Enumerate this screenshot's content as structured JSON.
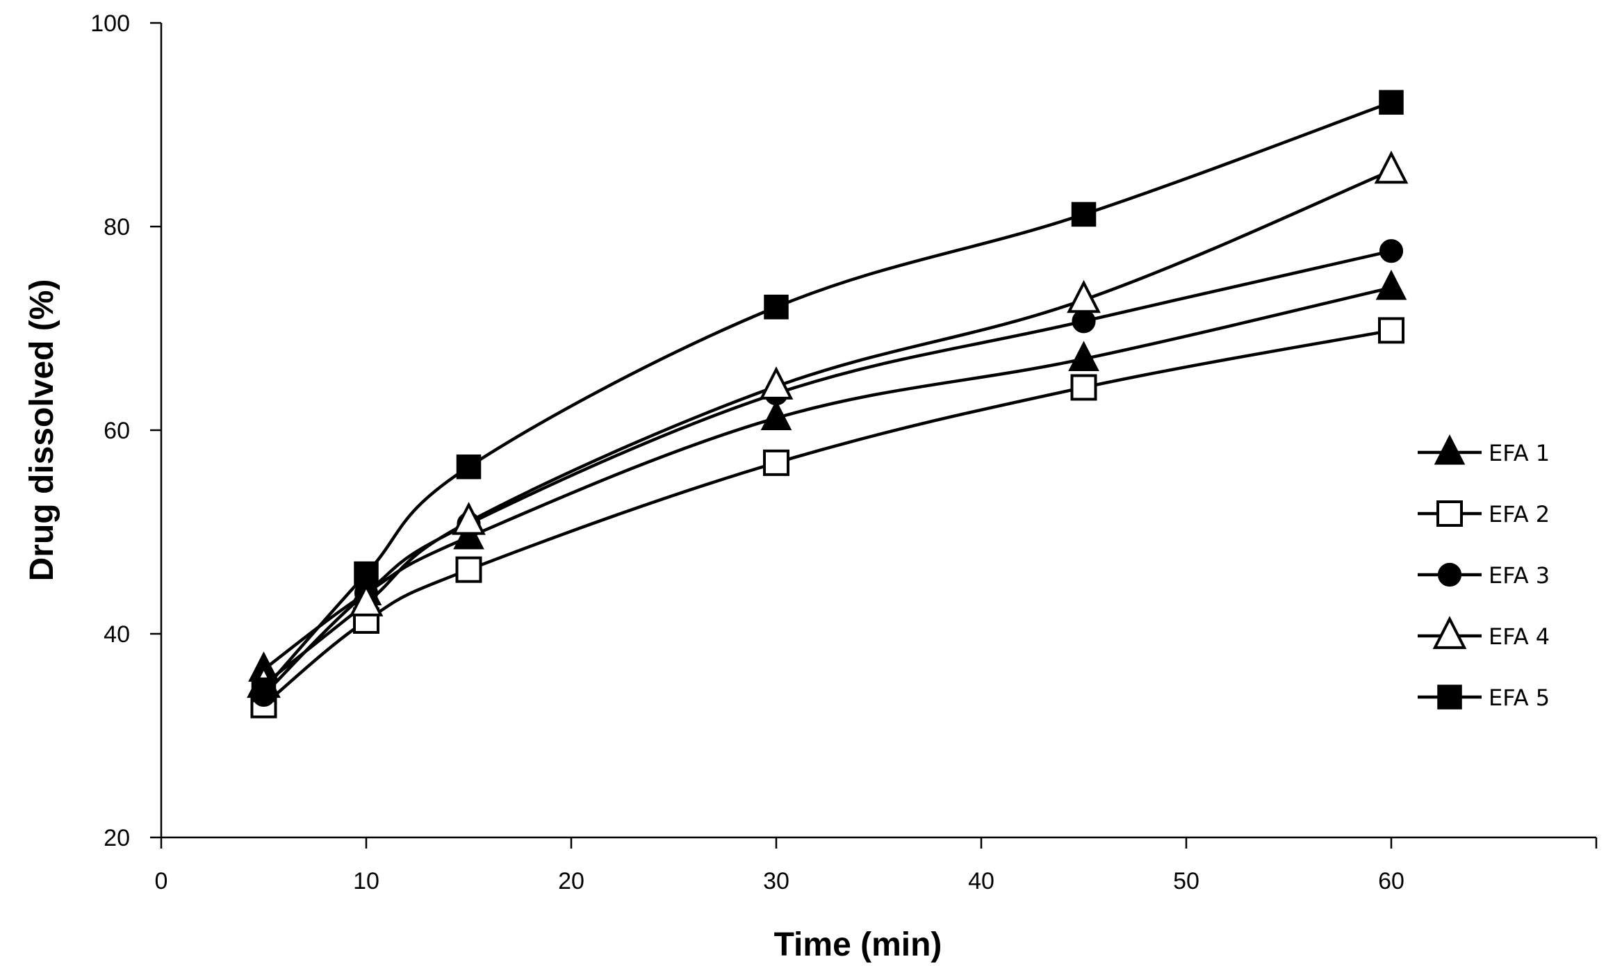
{
  "chart_data": {
    "type": "line",
    "title": "",
    "xlabel": "Time (min)",
    "ylabel": "Drug dissolved (%)",
    "xlim": [
      0,
      70
    ],
    "ylim": [
      20,
      100
    ],
    "xticks": [
      0,
      10,
      20,
      30,
      40,
      50,
      60
    ],
    "yticks": [
      20,
      40,
      60,
      80,
      100
    ],
    "grid": false,
    "legend_position": "right",
    "x": [
      5,
      10,
      15,
      30,
      45,
      60
    ],
    "series": [
      {
        "name": "EFA 1",
        "marker": "triangle-filled",
        "values": [
          36.5,
          44.0,
          49.5,
          61.2,
          67.0,
          74.0
        ]
      },
      {
        "name": "EFA 2",
        "marker": "square-open",
        "values": [
          33.0,
          41.3,
          46.3,
          56.8,
          64.2,
          69.8
        ]
      },
      {
        "name": "EFA 3",
        "marker": "circle-filled",
        "values": [
          34.0,
          44.0,
          50.8,
          63.6,
          70.7,
          77.6
        ]
      },
      {
        "name": "EFA 4",
        "marker": "triangle-open",
        "values": [
          35.0,
          43.0,
          51.0,
          64.3,
          72.8,
          85.5
        ]
      },
      {
        "name": "EFA 5",
        "marker": "square-filled",
        "values": [
          34.5,
          45.9,
          56.4,
          72.1,
          81.2,
          92.2
        ]
      }
    ]
  }
}
